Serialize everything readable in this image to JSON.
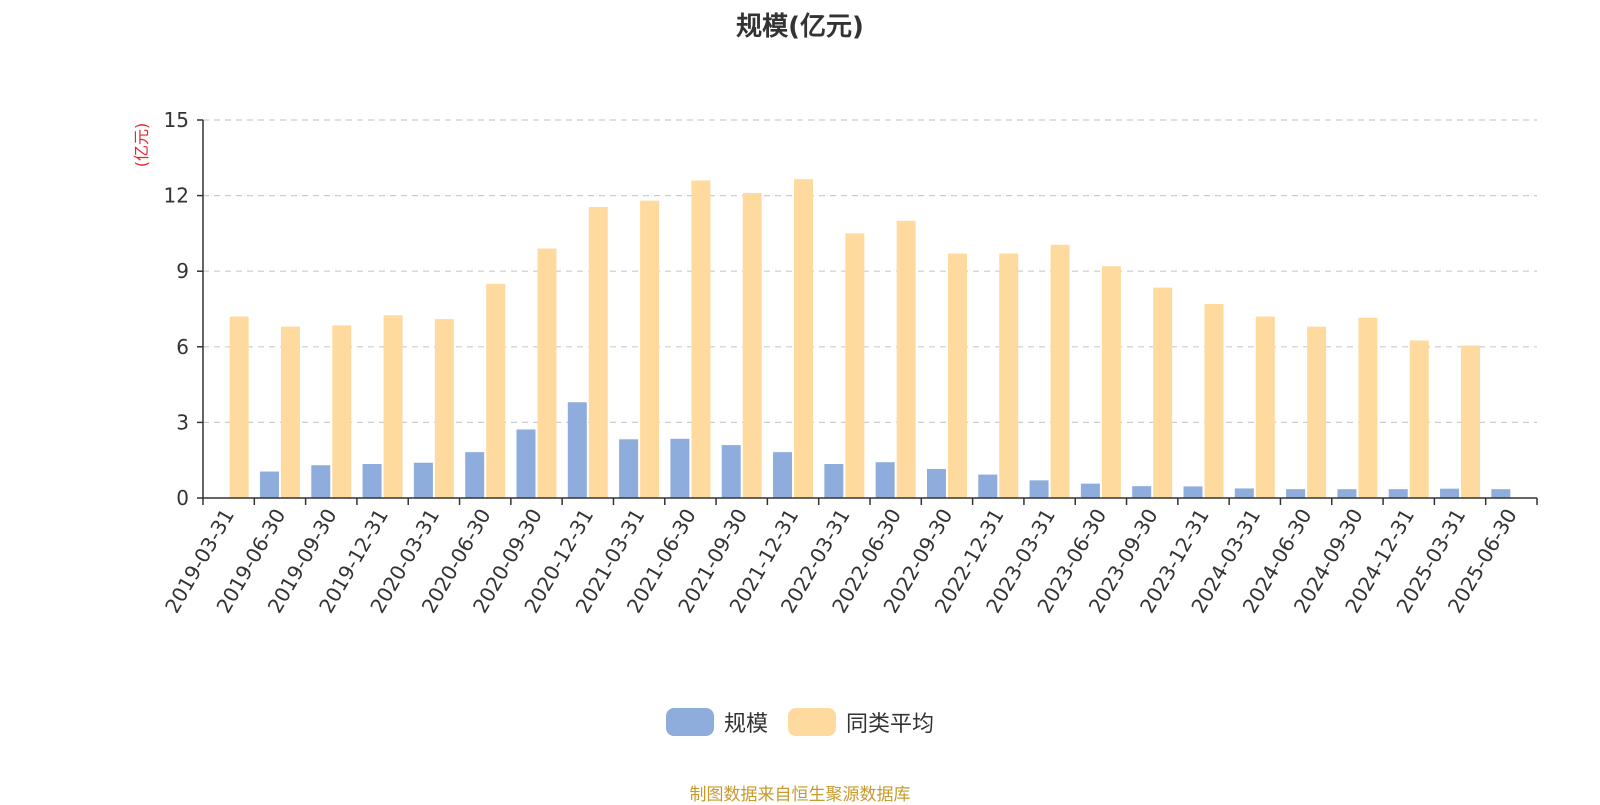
{
  "title": "规模(亿元)",
  "source_note": "制图数据来自恒生聚源数据库",
  "colors": {
    "scale": "#8EADDC",
    "peer_avg": "#FFDA9E",
    "ylabel": "#E8242B",
    "source_note": "#C79A2B",
    "grid": "#CCCCCC",
    "axis": "#333333"
  },
  "legend": [
    {
      "key": "scale",
      "label": "规模"
    },
    {
      "key": "peer_avg",
      "label": "同类平均"
    }
  ],
  "chart_data": {
    "type": "bar",
    "title": "规模(亿元)",
    "ylabel": "(亿元)",
    "xlabel": "",
    "ylim": [
      0,
      15
    ],
    "yticks": [
      0,
      3,
      6,
      9,
      12,
      15
    ],
    "grid": true,
    "legend_position": "bottom-center",
    "categories": [
      "2019-03-31",
      "2019-06-30",
      "2019-09-30",
      "2019-12-31",
      "2020-03-31",
      "2020-06-30",
      "2020-09-30",
      "2020-12-31",
      "2021-03-31",
      "2021-06-30",
      "2021-09-30",
      "2021-12-31",
      "2022-03-31",
      "2022-06-30",
      "2022-09-30",
      "2022-12-31",
      "2023-03-31",
      "2023-06-30",
      "2023-09-30",
      "2023-12-31",
      "2024-03-31",
      "2024-06-30",
      "2024-09-30",
      "2024-12-31",
      "2025-03-31",
      "2025-06-30"
    ],
    "series": [
      {
        "name": "规模",
        "color_key": "scale",
        "values": [
          0,
          1.05,
          1.3,
          1.35,
          1.4,
          1.82,
          2.72,
          3.8,
          2.33,
          2.35,
          2.1,
          1.82,
          1.35,
          1.42,
          1.15,
          0.93,
          0.7,
          0.57,
          0.47,
          0.46,
          0.38,
          0.35,
          0.35,
          0.35,
          0.37,
          0.35
        ]
      },
      {
        "name": "同类平均",
        "color_key": "peer_avg",
        "values": [
          7.2,
          6.8,
          6.85,
          7.25,
          7.1,
          8.5,
          9.9,
          11.55,
          11.8,
          12.6,
          12.1,
          12.65,
          10.5,
          11.0,
          9.7,
          9.7,
          10.05,
          9.2,
          8.35,
          7.7,
          7.2,
          6.8,
          7.15,
          6.25,
          6.05,
          0
        ]
      }
    ]
  }
}
